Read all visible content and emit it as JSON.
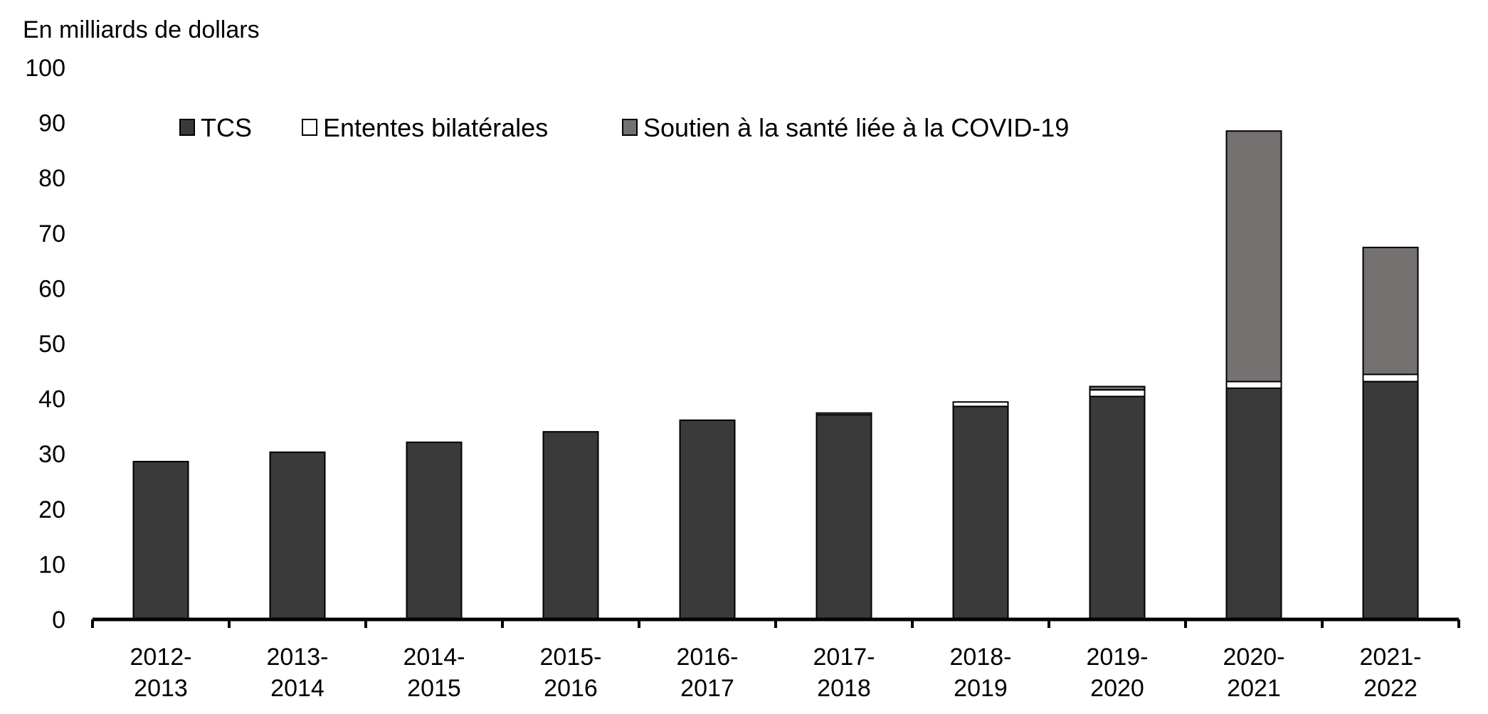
{
  "chart_data": {
    "type": "bar",
    "stacked": true,
    "ylabel": "En milliards de dollars",
    "ylim": [
      0,
      100
    ],
    "yticks": [
      0,
      10,
      20,
      30,
      40,
      50,
      60,
      70,
      80,
      90,
      100
    ],
    "grid": false,
    "legend_position": "top",
    "categories": [
      "2012-\n2013",
      "2013-\n2014",
      "2014-\n2015",
      "2015-\n2016",
      "2016-\n2017",
      "2017-\n2018",
      "2018-\n2019",
      "2019-\n2020",
      "2020-\n2021",
      "2021-\n2022"
    ],
    "series": [
      {
        "name": "TCS",
        "color": "#3a3a3a",
        "values": [
          28.6,
          30.3,
          32.1,
          34.0,
          36.1,
          37.1,
          38.6,
          40.4,
          41.9,
          43.1
        ]
      },
      {
        "name": "Ententes bilatérales",
        "color": "#ffffff",
        "values": [
          0,
          0,
          0,
          0,
          0,
          0.3,
          0.8,
          1.2,
          1.2,
          1.3
        ]
      },
      {
        "name": "Soutien à la santé liée à la COVID-19",
        "color": "#767171",
        "values": [
          0,
          0,
          0,
          0,
          0,
          0,
          0,
          0.6,
          45.4,
          23.0
        ]
      }
    ]
  }
}
